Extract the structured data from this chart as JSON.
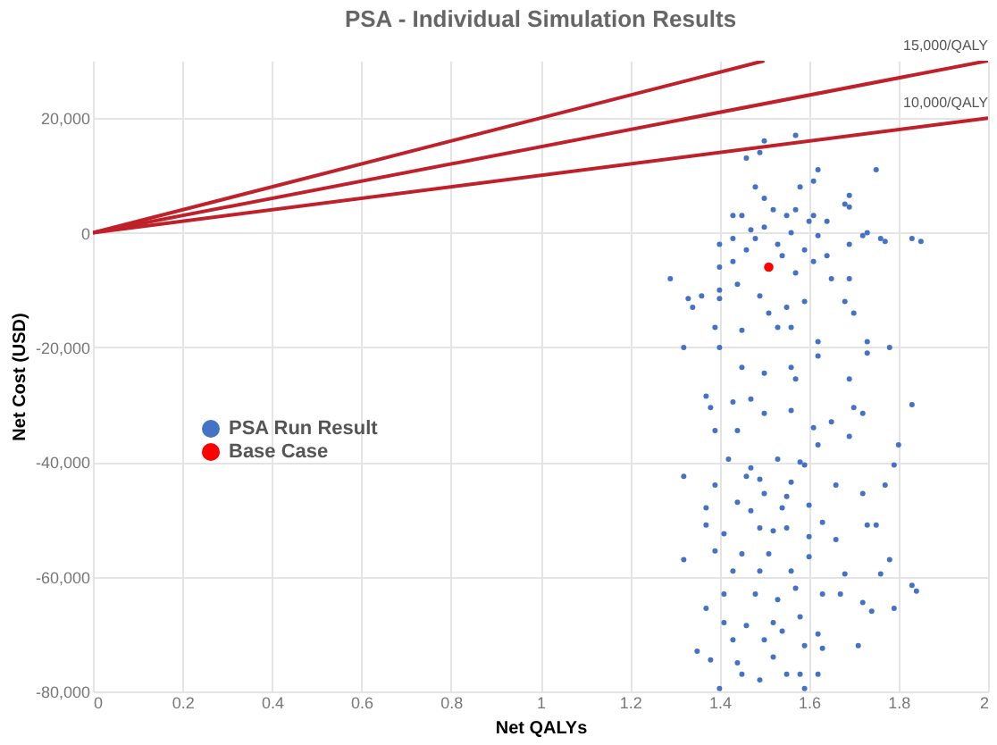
{
  "chart_data": {
    "type": "scatter",
    "title": "PSA - Individual Simulation Results",
    "xlabel": "Net QALYs",
    "ylabel": "Net Cost (USD)",
    "xlim": [
      0,
      2
    ],
    "xticks": [
      0,
      0.2,
      0.4,
      0.6,
      0.8,
      1,
      1.2,
      1.4,
      1.6,
      1.8,
      2
    ],
    "ylim": [
      -80000,
      30000
    ],
    "yticks": [
      {
        "value": -80000,
        "label": "-80,000"
      },
      {
        "value": -60000,
        "label": "-60,000"
      },
      {
        "value": -40000,
        "label": "-40,000"
      },
      {
        "value": -20000,
        "label": "-20,000"
      },
      0,
      {
        "value": 20000,
        "label": "20,000"
      }
    ],
    "grid": true,
    "legend": "left",
    "annotations": [
      {
        "text": "15,000/QALY",
        "x": 2,
        "y": 30000
      },
      {
        "text": "10,000/QALY",
        "x": 2,
        "y": 20000
      }
    ],
    "series": [
      {
        "type": "line",
        "color": "#c0202a",
        "x": [
          0,
          1.5
        ],
        "values": [
          0,
          30000
        ]
      },
      {
        "type": "line",
        "color": "#c0202a",
        "x": [
          0,
          2
        ],
        "values": [
          0,
          30000
        ]
      },
      {
        "type": "line",
        "color": "#c0202a",
        "x": [
          0,
          2
        ],
        "values": [
          0,
          20000
        ]
      },
      {
        "name": "PSA Run Result",
        "color": "#4472c4",
        "marker": "circle",
        "x": [
          1.5,
          1.57,
          1.46,
          1.49,
          1.62,
          1.75,
          1.48,
          1.58,
          1.61,
          1.68,
          1.69,
          1.52,
          1.45,
          1.55,
          1.6,
          1.64,
          1.5,
          1.47,
          1.56,
          1.62,
          1.72,
          1.77,
          1.85,
          1.43,
          1.4,
          1.53,
          1.59,
          1.29,
          1.34,
          1.33,
          1.4,
          1.44,
          1.55,
          1.59,
          1.68,
          1.7,
          1.51,
          1.39,
          1.45,
          1.53,
          1.56,
          1.32,
          1.4,
          1.62,
          1.73,
          1.78,
          1.73,
          1.45,
          1.5,
          1.56,
          1.57,
          1.69,
          1.62,
          1.69,
          1.73,
          1.76,
          1.83,
          1.64,
          1.65,
          1.69,
          1.36,
          1.4,
          1.49,
          1.57,
          1.61,
          1.43,
          1.4,
          1.54,
          1.46,
          1.48,
          1.57,
          1.61,
          1.43,
          1.5,
          1.69,
          1.37,
          1.38,
          1.43,
          1.47,
          1.39,
          1.44,
          1.5,
          1.56,
          1.61,
          1.65,
          1.7,
          1.72,
          1.83,
          1.69,
          1.8,
          1.79,
          1.77,
          1.72,
          1.66,
          1.59,
          1.53,
          1.46,
          1.42,
          1.39,
          1.32,
          1.5,
          1.56,
          1.6,
          1.54,
          1.47,
          1.37,
          1.37,
          1.41,
          1.49,
          1.55,
          1.63,
          1.66,
          1.73,
          1.75,
          1.39,
          1.51,
          1.6,
          1.32,
          1.43,
          1.49,
          1.56,
          1.68,
          1.78,
          1.76,
          1.83,
          1.84,
          1.41,
          1.48,
          1.53,
          1.63,
          1.67,
          1.72,
          1.74,
          1.79,
          1.37,
          1.41,
          1.46,
          1.52,
          1.58,
          1.54,
          1.5,
          1.43,
          1.62,
          1.63,
          1.71,
          1.59,
          1.35,
          1.38,
          1.44,
          1.52,
          1.58,
          1.62,
          1.45,
          1.4,
          1.49,
          1.59,
          1.55,
          1.47,
          1.49,
          1.55,
          1.58,
          1.52,
          1.6,
          1.45,
          1.57,
          1.44,
          1.62
        ],
        "values": [
          16000,
          17000,
          13000,
          14000,
          11000,
          11000,
          8000,
          8000,
          9000,
          5000,
          4500,
          4000,
          3000,
          3000,
          2000,
          2000,
          1000,
          500,
          0,
          -500,
          -500,
          -1500,
          -1500,
          -1000,
          -2000,
          -2000,
          -3000,
          -8000,
          -13000,
          -11500,
          -11500,
          -9000,
          -13000,
          -12000,
          -12000,
          -14000,
          -14000,
          -16500,
          -17000,
          -16500,
          -16500,
          -20000,
          -20000,
          -19000,
          -19000,
          -20000,
          -21000,
          -23500,
          -24500,
          -23500,
          -25500,
          -25500,
          -21500,
          -2000,
          0,
          -1000,
          -1000,
          -4000,
          -8000,
          -8000,
          -11000,
          -10000,
          -11000,
          -7000,
          -5000,
          -5000,
          -6000,
          -4000,
          -3000,
          -1000,
          4000,
          3000,
          3000,
          6000,
          6500,
          -28500,
          -30500,
          -29500,
          -29000,
          -34500,
          -34500,
          -31500,
          -31000,
          -34000,
          -33000,
          -30500,
          -31500,
          -30000,
          -35500,
          -37000,
          -40500,
          -44000,
          -45500,
          -44000,
          -40500,
          -39500,
          -42500,
          -39500,
          -44000,
          -42500,
          -45500,
          -43500,
          -47500,
          -48000,
          -48500,
          -48000,
          -51000,
          -52500,
          -51500,
          -51500,
          -50500,
          -53500,
          -51000,
          -51000,
          -55500,
          -56000,
          -56500,
          -57000,
          -59000,
          -59000,
          -59000,
          -59500,
          -57000,
          -59500,
          -61500,
          -62500,
          -63000,
          -63000,
          -64000,
          -63000,
          -63000,
          -64500,
          -66000,
          -65500,
          -65500,
          -68000,
          -68500,
          -68000,
          -67000,
          -69500,
          -71000,
          -71000,
          -70000,
          -72500,
          -72000,
          -72000,
          -73000,
          -74500,
          -75000,
          -74000,
          -77000,
          -77000,
          -77000,
          -79500,
          -78000,
          -79500,
          -77000,
          -41000,
          -43000,
          -46000,
          -40000,
          -52000,
          -53000,
          -56000,
          -62000,
          -47000,
          -37000
        ]
      },
      {
        "name": "Base Case",
        "color": "#ff0000",
        "marker": "circle",
        "x": [
          1.51
        ],
        "values": [
          -6000
        ]
      }
    ]
  }
}
